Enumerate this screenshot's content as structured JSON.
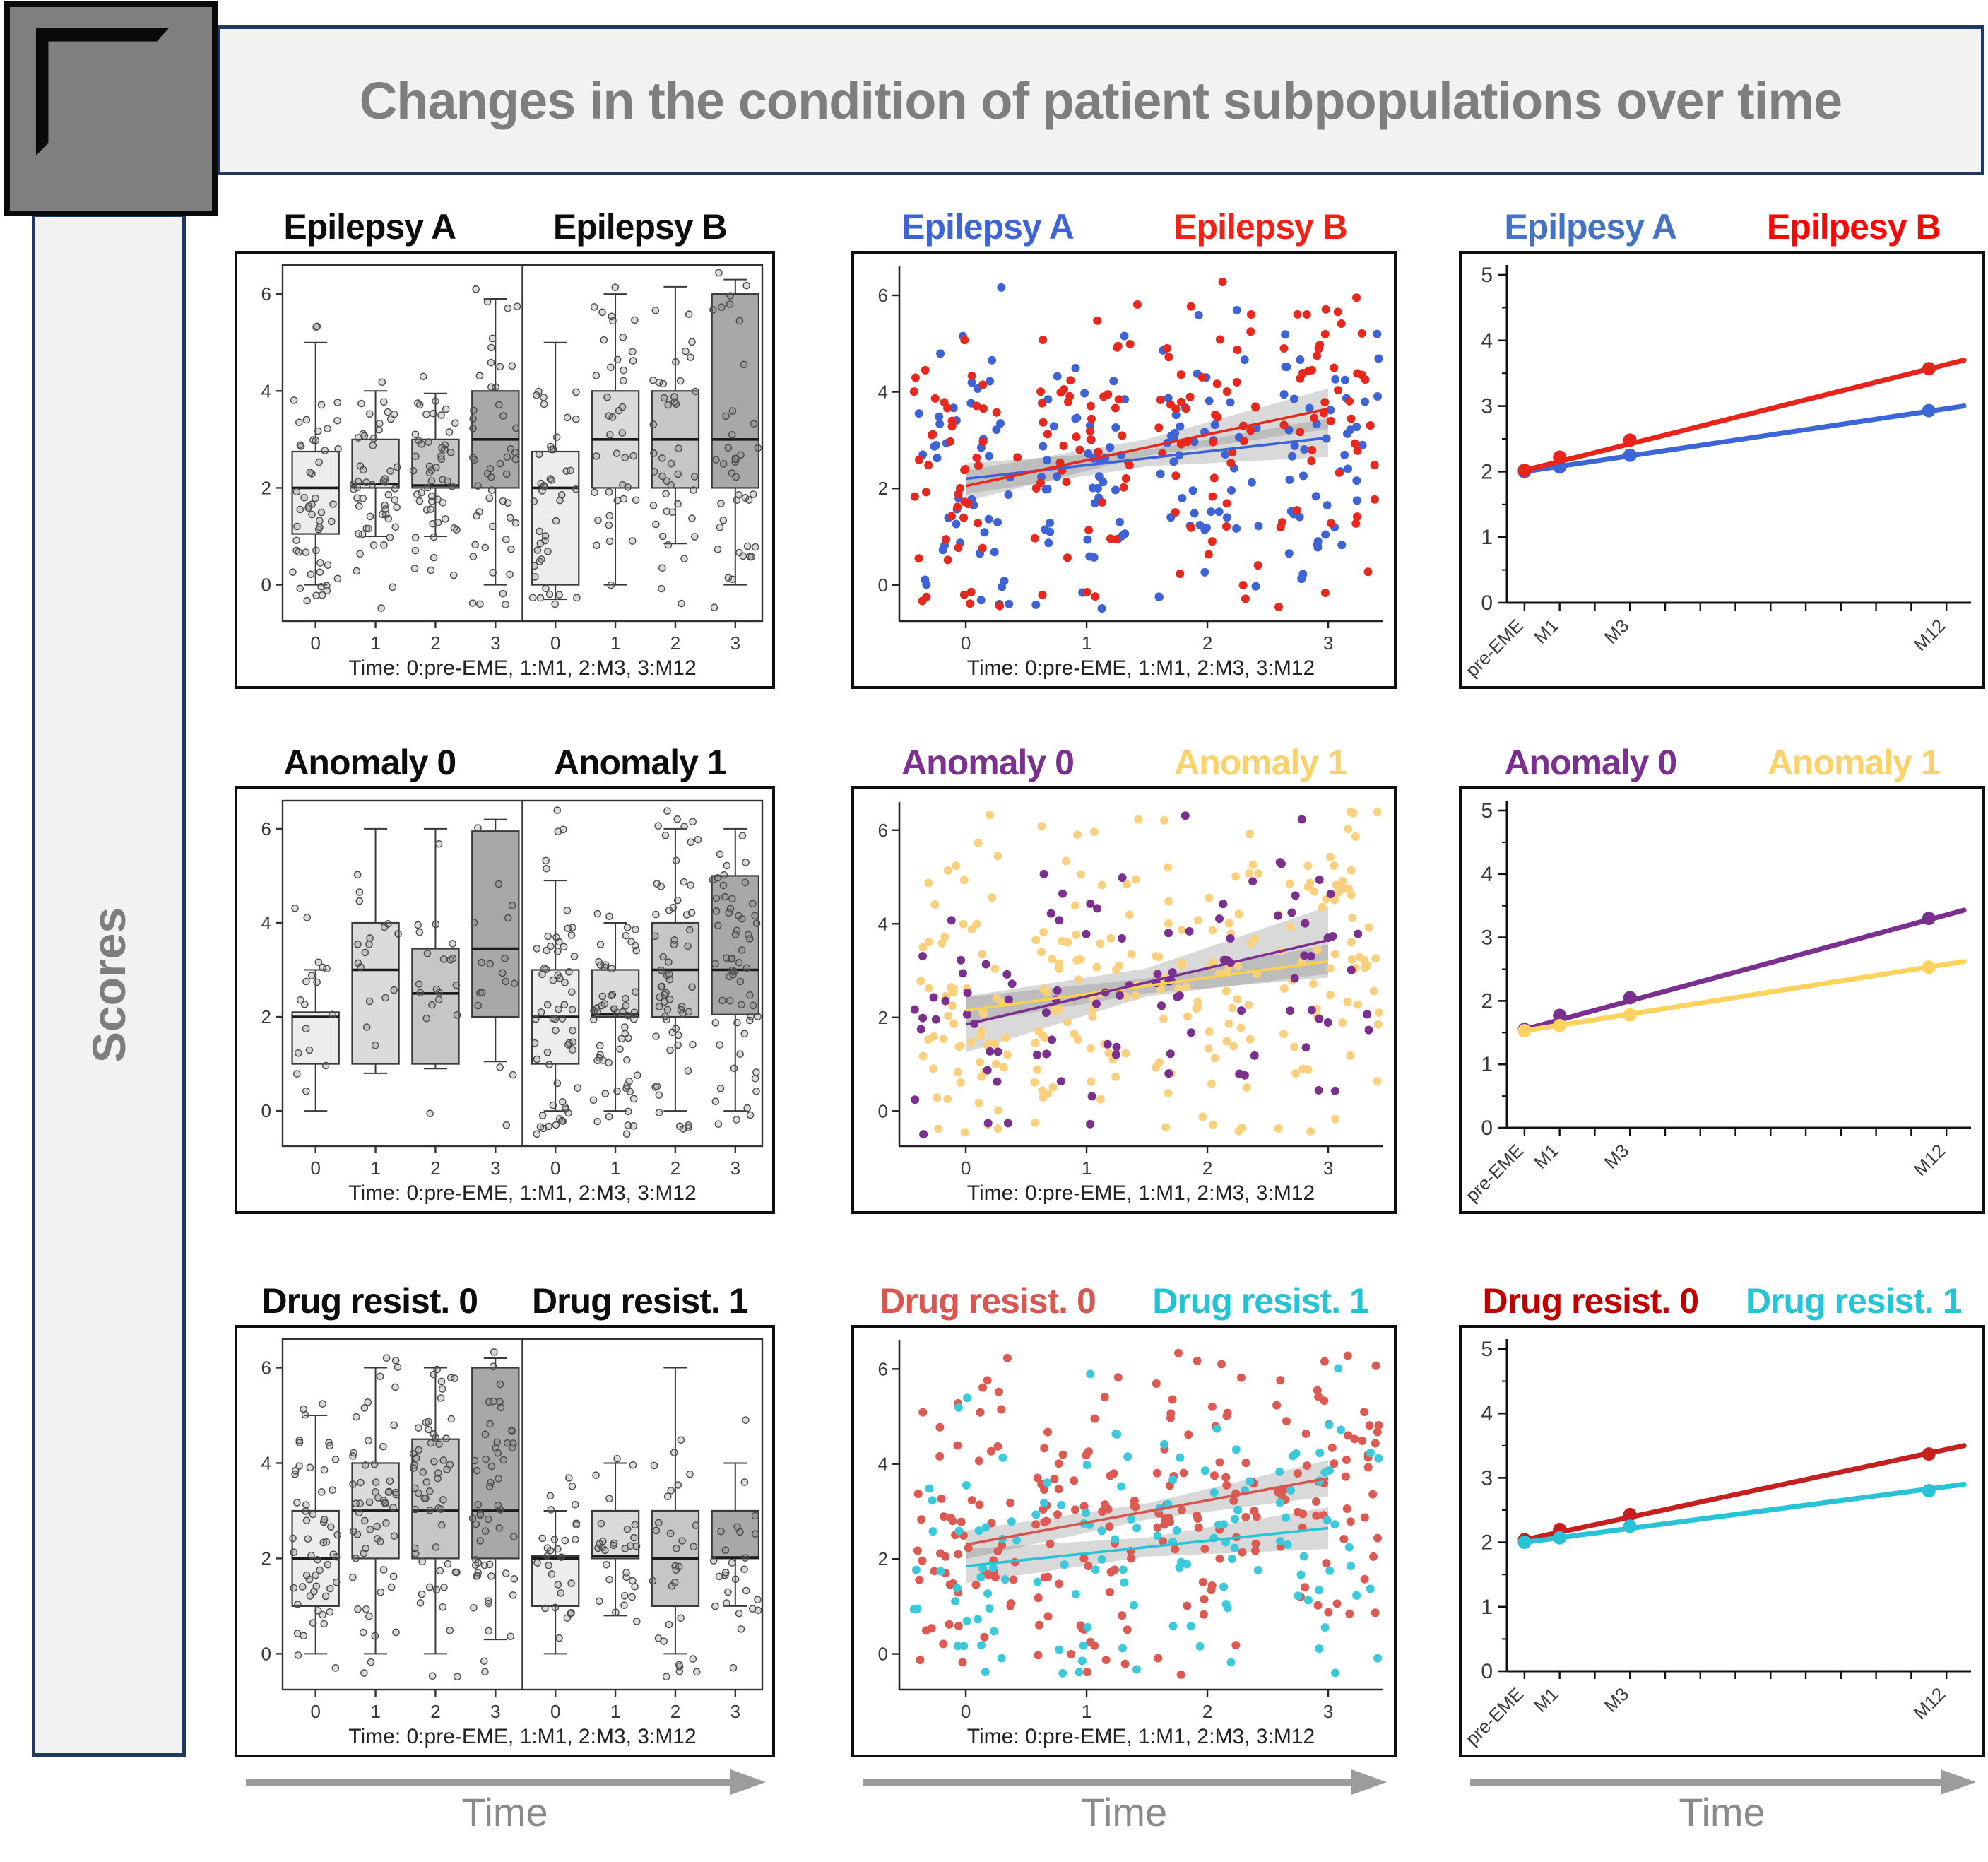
{
  "header": {
    "title": "Changes in the condition of patient subpopulations over time"
  },
  "sidebar": {
    "label": "Scores"
  },
  "footer": {
    "time_label": "Time"
  },
  "chart_data": {
    "type": "multi-panel",
    "shared": {
      "x_axis_label": "Time: 0:pre-EME, 1:M1, 2:M3, 3:M12",
      "box_y_ticks": [
        0,
        2,
        4,
        6
      ],
      "box_x_ticks": [
        0,
        1,
        2,
        3
      ],
      "box_ylim": [
        -0.75,
        6.6
      ],
      "box_xlim": [
        -0.55,
        3.45
      ],
      "box_fills": [
        "#ededed",
        "#dbdbdb",
        "#c6c6c6",
        "#a8a8a8"
      ],
      "line_y_ticks": [
        0,
        1,
        2,
        3,
        4,
        5
      ],
      "line_x_tick_count": 13,
      "line_x_labels": [
        {
          "x": 0,
          "text": "pre-EME"
        },
        {
          "x": 1,
          "text": "M1"
        },
        {
          "x": 3,
          "text": "M3"
        },
        {
          "x": 12,
          "text": "M12"
        }
      ],
      "line_ylim": [
        0,
        5
      ],
      "line_xlim": [
        -0.5,
        12.7
      ],
      "band_color": "rgba(120,120,120,0.28)",
      "grid": false,
      "legend_position": "above-panel"
    },
    "rows": [
      {
        "box": {
          "titles": [
            {
              "text": "Epilepsy A",
              "color": "#0d0d0d"
            },
            {
              "text": "Epilepsy B",
              "color": "#0d0d0d"
            }
          ],
          "groups": [
            {
              "seed": 11,
              "jitter_n": [
                52,
                52,
                52,
                50
              ],
              "stats": [
                [
                  0.0,
                  1.05,
                  2.0,
                  2.75,
                  5.0
                ],
                [
                  1.0,
                  2.0,
                  2.08,
                  3.0,
                  4.0
                ],
                [
                  1.0,
                  2.0,
                  2.05,
                  3.0,
                  3.95
                ],
                [
                  0.0,
                  2.0,
                  3.0,
                  4.0,
                  5.9
                ]
              ]
            },
            {
              "seed": 12,
              "jitter_n": [
                42,
                40,
                42,
                40
              ],
              "stats": [
                [
                  -0.3,
                  0.0,
                  2.0,
                  2.75,
                  5.0
                ],
                [
                  0.0,
                  2.0,
                  3.0,
                  4.0,
                  6.0
                ],
                [
                  0.85,
                  2.0,
                  3.0,
                  4.0,
                  6.15
                ],
                [
                  0.0,
                  2.0,
                  3.0,
                  6.0,
                  6.3
                ]
              ]
            }
          ]
        },
        "scatter": {
          "titles": [
            {
              "text": "Epilepsy A",
              "color": "#3e63d6"
            },
            {
              "text": "Epilepsy B",
              "color": "#f22015"
            }
          ],
          "series": [
            {
              "name": "Epilepsy A",
              "dot_color": "#3e63d6",
              "line_color": "#3e63d6",
              "n": 184,
              "sd": 1.55,
              "seed": 21,
              "trend": [
                2.2,
                3.05
              ],
              "band": [
                0.32,
                0.17,
                0.4
              ]
            },
            {
              "name": "Epilepsy B",
              "dot_color": "#e8271d",
              "line_color": "#e8271d",
              "n": 184,
              "sd": 1.6,
              "seed": 22,
              "trend": [
                2.05,
                3.65
              ],
              "band": [
                0.32,
                0.17,
                0.42
              ]
            }
          ]
        },
        "lines": {
          "titles": [
            {
              "text": "Epilpesy A",
              "color": "#4472c4"
            },
            {
              "text": "Epilpesy B",
              "color": "#fb0505"
            }
          ],
          "series": [
            {
              "name": "Epilpesy A",
              "color": "#3c66d8",
              "points": [
                [
                  0,
                  2.0
                ],
                [
                  1,
                  2.07
                ],
                [
                  3,
                  2.25
                ],
                [
                  11.5,
                  2.93
                ]
              ],
              "end": [
                12.5,
                3.0
              ]
            },
            {
              "name": "Epilpesy B",
              "color": "#e8231a",
              "points": [
                [
                  0,
                  2.02
                ],
                [
                  1,
                  2.22
                ],
                [
                  3,
                  2.48
                ],
                [
                  11.5,
                  3.57
                ]
              ],
              "end": [
                12.5,
                3.7
              ]
            }
          ]
        }
      },
      {
        "box": {
          "titles": [
            {
              "text": "Anomaly 0",
              "color": "#0d0d0d"
            },
            {
              "text": "Anomaly 1",
              "color": "#0d0d0d"
            }
          ],
          "groups": [
            {
              "seed": 13,
              "jitter_n": [
                17,
                17,
                19,
                17
              ],
              "stats": [
                [
                  0.0,
                  1.0,
                  2.0,
                  2.1,
                  3.0
                ],
                [
                  0.8,
                  1.0,
                  3.0,
                  4.0,
                  6.0
                ],
                [
                  0.9,
                  1.0,
                  2.5,
                  3.45,
                  6.0
                ],
                [
                  1.05,
                  2.0,
                  3.45,
                  5.95,
                  6.2
                ]
              ]
            },
            {
              "seed": 14,
              "jitter_n": [
                62,
                60,
                62,
                60
              ],
              "stats": [
                [
                  0.0,
                  1.0,
                  2.0,
                  3.0,
                  4.9
                ],
                [
                  0.0,
                  2.0,
                  2.05,
                  3.0,
                  4.0
                ],
                [
                  0.0,
                  2.0,
                  3.0,
                  4.0,
                  6.0
                ],
                [
                  0.0,
                  2.05,
                  3.0,
                  5.0,
                  6.0
                ]
              ]
            }
          ]
        },
        "scatter": {
          "titles": [
            {
              "text": "Anomaly 0",
              "color": "#7b2f8e"
            },
            {
              "text": "Anomaly 1",
              "color": "#fbd169"
            }
          ],
          "series": [
            {
              "name": "Anomaly 1",
              "dot_color": "#f9d17e",
              "line_color": "#ffd24b",
              "n": 252,
              "sd": 1.6,
              "seed": 24,
              "trend": [
                2.15,
                3.2
              ],
              "band": [
                0.28,
                0.16,
                0.35
              ]
            },
            {
              "name": "Anomaly 0",
              "dot_color": "#7b2f8e",
              "line_color": "#7b2f8e",
              "n": 100,
              "sd": 1.5,
              "seed": 23,
              "trend": [
                1.85,
                3.65
              ],
              "band": [
                0.6,
                0.3,
                0.72
              ]
            }
          ]
        },
        "lines": {
          "titles": [
            {
              "text": "Anomaly 0",
              "color": "#7b2f8e"
            },
            {
              "text": "Anomaly 1",
              "color": "#fbd169"
            }
          ],
          "series": [
            {
              "name": "Anomaly 0",
              "color": "#7b2f8e",
              "points": [
                [
                  0,
                  1.55
                ],
                [
                  1,
                  1.77
                ],
                [
                  3,
                  2.05
                ],
                [
                  11.5,
                  3.3
                ]
              ],
              "end": [
                12.5,
                3.43
              ]
            },
            {
              "name": "Anomaly 1",
              "color": "#fdd35e",
              "points": [
                [
                  0,
                  1.53
                ],
                [
                  1,
                  1.61
                ],
                [
                  3,
                  1.78
                ],
                [
                  11.5,
                  2.53
                ]
              ],
              "end": [
                12.5,
                2.62
              ]
            }
          ]
        }
      },
      {
        "box": {
          "titles": [
            {
              "text": "Drug resist. 0",
              "color": "#0d0d0d"
            },
            {
              "text": "Drug resist. 1",
              "color": "#0d0d0d"
            }
          ],
          "groups": [
            {
              "seed": 15,
              "jitter_n": [
                56,
                58,
                58,
                56
              ],
              "stats": [
                [
                  0.0,
                  1.0,
                  2.0,
                  3.0,
                  5.0
                ],
                [
                  0.0,
                  2.0,
                  3.0,
                  4.0,
                  6.0
                ],
                [
                  0.0,
                  2.0,
                  3.0,
                  4.5,
                  6.0
                ],
                [
                  0.3,
                  2.0,
                  3.0,
                  6.0,
                  6.2
                ]
              ]
            },
            {
              "seed": 16,
              "jitter_n": [
                28,
                30,
                30,
                26
              ],
              "stats": [
                [
                  0.0,
                  1.0,
                  2.0,
                  2.05,
                  3.0
                ],
                [
                  0.8,
                  2.0,
                  2.05,
                  3.0,
                  4.0
                ],
                [
                  0.0,
                  1.0,
                  2.0,
                  3.0,
                  6.0
                ],
                [
                  1.0,
                  2.0,
                  2.02,
                  3.0,
                  4.0
                ]
              ]
            }
          ]
        },
        "scatter": {
          "titles": [
            {
              "text": "Drug resist. 0",
              "color": "#d9574f"
            },
            {
              "text": "Drug resist. 1",
              "color": "#25c1d4"
            }
          ],
          "series": [
            {
              "name": "Drug resist. 0",
              "dot_color": "#dc5a52",
              "line_color": "#d9544c",
              "n": 236,
              "sd": 1.55,
              "seed": 25,
              "trend": [
                2.3,
                3.7
              ],
              "band": [
                0.3,
                0.17,
                0.38
              ]
            },
            {
              "name": "Drug resist. 1",
              "dot_color": "#3bc9db",
              "line_color": "#27c3d7",
              "n": 132,
              "sd": 1.5,
              "seed": 26,
              "trend": [
                1.85,
                2.65
              ],
              "band": [
                0.36,
                0.2,
                0.44
              ]
            }
          ]
        },
        "lines": {
          "titles": [
            {
              "text": "Drug resist. 0",
              "color": "#c00000"
            },
            {
              "text": "Drug resist. 1",
              "color": "#27c3d7"
            }
          ],
          "series": [
            {
              "name": "Drug resist. 0",
              "color": "#c71f1f",
              "points": [
                [
                  0,
                  2.04
                ],
                [
                  1,
                  2.2
                ],
                [
                  3,
                  2.43
                ],
                [
                  11.5,
                  3.37
                ]
              ],
              "end": [
                12.5,
                3.5
              ]
            },
            {
              "name": "Drug resist. 1",
              "color": "#27c3d7",
              "points": [
                [
                  0,
                  2.0
                ],
                [
                  1,
                  2.07
                ],
                [
                  3,
                  2.25
                ],
                [
                  11.5,
                  2.8
                ]
              ],
              "end": [
                12.5,
                2.9
              ]
            }
          ]
        }
      }
    ]
  }
}
